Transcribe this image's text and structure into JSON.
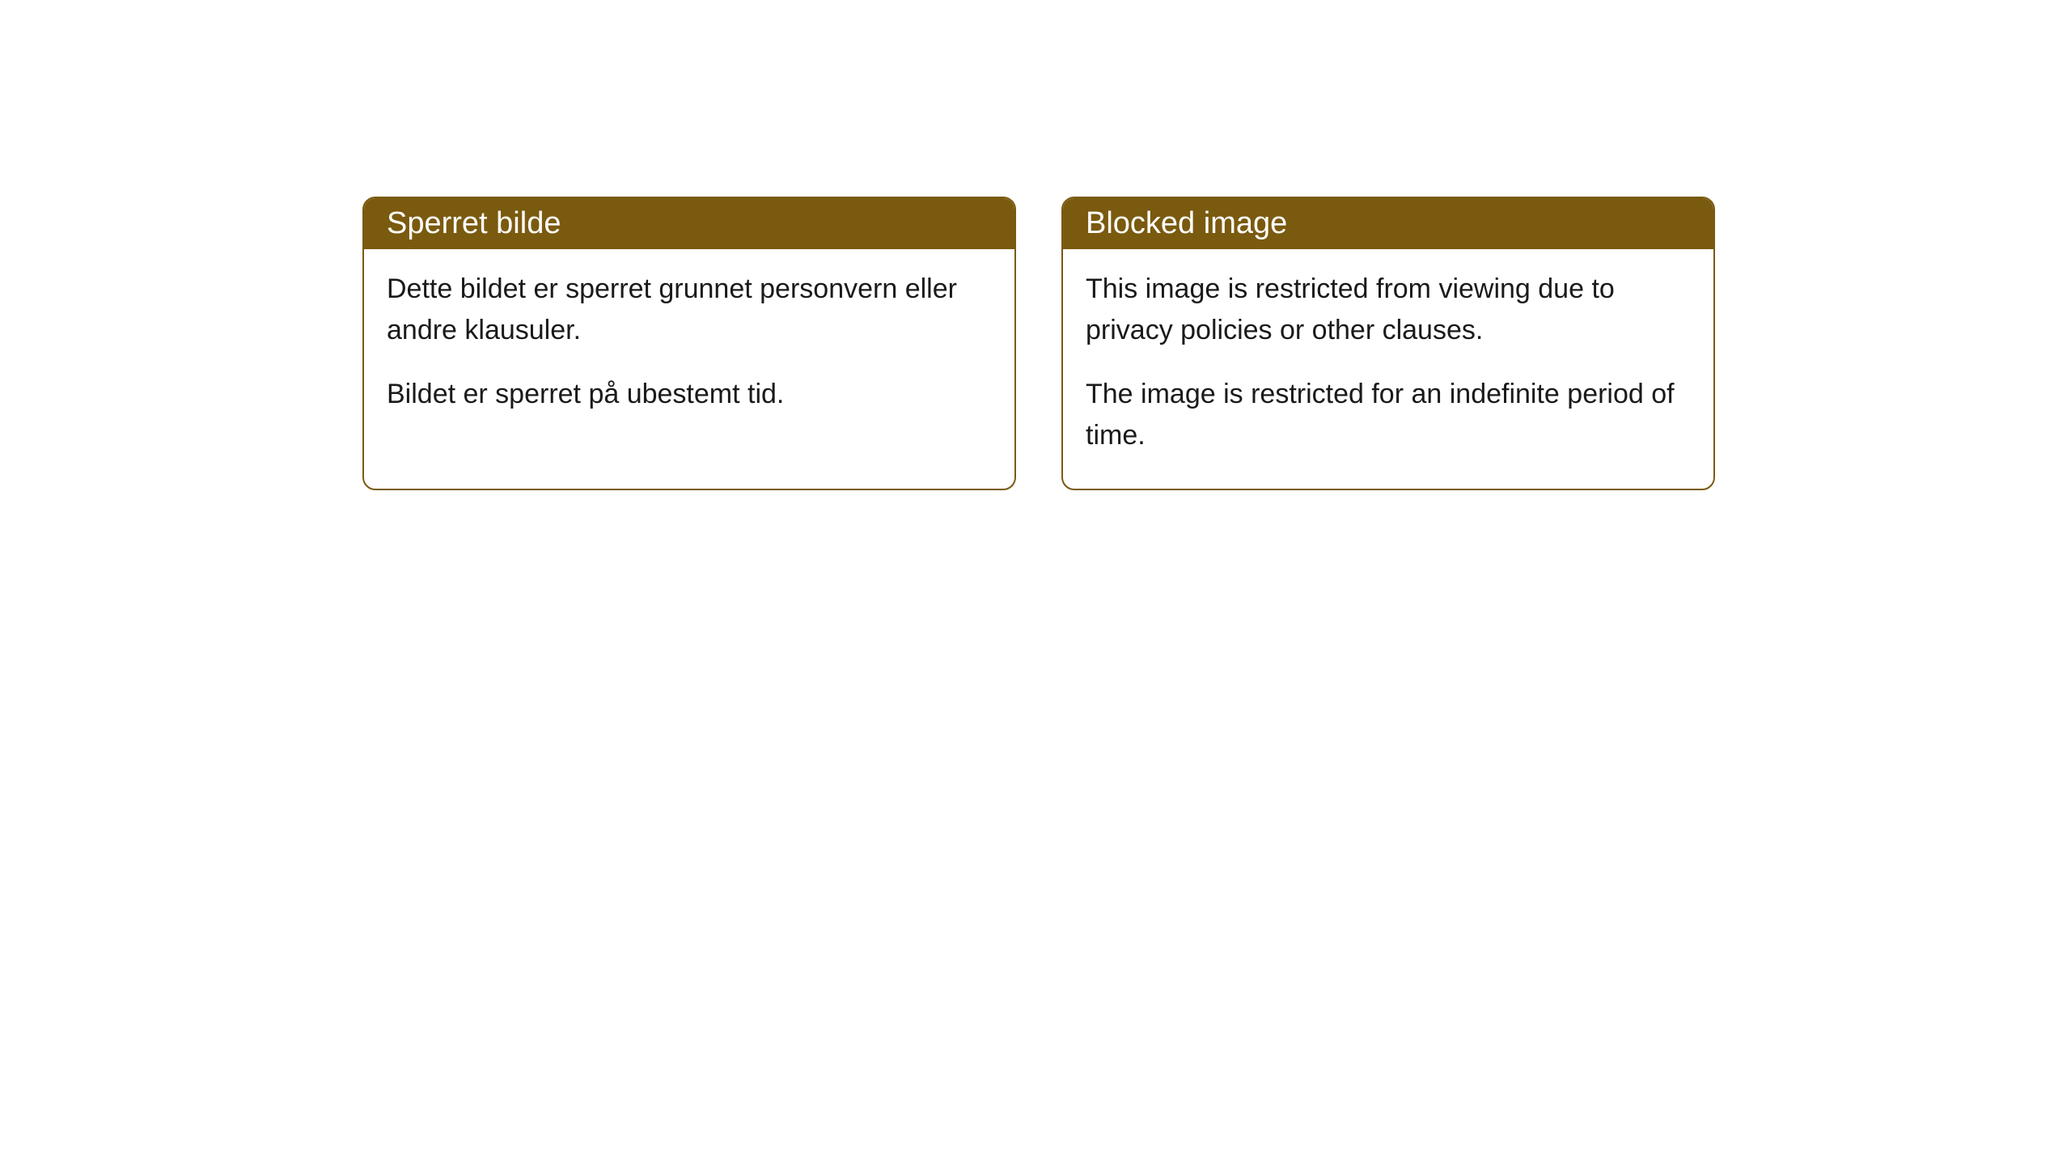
{
  "cards": [
    {
      "title": "Sperret bilde",
      "paragraph1": "Dette bildet er sperret grunnet personvern eller andre klausuler.",
      "paragraph2": "Bildet er sperret på ubestemt tid."
    },
    {
      "title": "Blocked image",
      "paragraph1": "This image is restricted from viewing due to privacy policies or other clauses.",
      "paragraph2": "The image is restricted for an indefinite period of time."
    }
  ],
  "styling": {
    "header_bg_color": "#7a5a0f",
    "header_text_color": "#ffffff",
    "border_color": "#7a5a0f",
    "body_bg_color": "#ffffff",
    "body_text_color": "#1a1a1a",
    "border_radius": 16,
    "header_fontsize": 38,
    "body_fontsize": 34
  }
}
